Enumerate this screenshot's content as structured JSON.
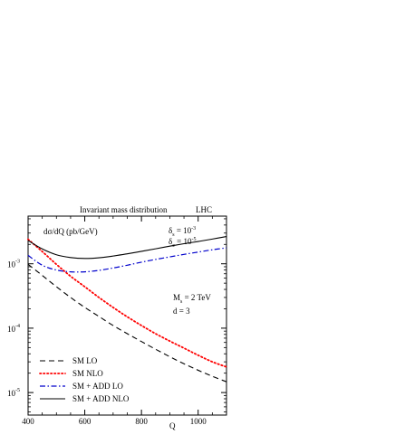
{
  "chart_data": {
    "type": "line",
    "title": "Invariant mass distribution",
    "title_right": "LHC",
    "ylabel": "dσ/dQ (pb/GeV)",
    "xlabel": "Q",
    "xlim": [
      400,
      1100
    ],
    "ylim": [
      4.47e-06,
      0.0055
    ],
    "yscale": "log",
    "x_ticks": [
      400,
      600,
      800,
      1000
    ],
    "x_tick_labels": [
      "400",
      "600",
      "800",
      "1000"
    ],
    "y_ticks": [
      0.001,
      0.0001,
      1e-05
    ],
    "y_tick_labels": [
      {
        "base": "10",
        "exp": "-3"
      },
      {
        "base": "10",
        "exp": "-4"
      },
      {
        "base": "10",
        "exp": "-5"
      }
    ],
    "annotations": {
      "delta_s": {
        "sym": "δ",
        "sub": "s",
        "text": " = 10",
        "exp": "-3"
      },
      "delta_c": {
        "sym": "δ",
        "sub": "c",
        "text": " = 10",
        "exp": "-5"
      },
      "ms": {
        "sym": "M",
        "sub": "s",
        "text": " = 2 TeV"
      },
      "d": {
        "text": "d = 3"
      }
    },
    "legend_position": "bottom-left",
    "series": [
      {
        "name": "SM LO",
        "color": "#000000",
        "dash": "dashed",
        "x": [
          400,
          450,
          500,
          550,
          600,
          650,
          700,
          750,
          800,
          850,
          900,
          950,
          1000,
          1050,
          1100
        ],
        "y": [
          0.00098,
          0.00066,
          0.00044,
          0.0003,
          0.00021,
          0.000152,
          0.00011,
          8.2e-05,
          6.2e-05,
          4.7e-05,
          3.6e-05,
          2.8e-05,
          2.22e-05,
          1.79e-05,
          1.47e-05
        ]
      },
      {
        "name": "SM NLO",
        "color": "#ff0000",
        "dash": "dotted",
        "x": [
          400,
          450,
          500,
          550,
          600,
          650,
          700,
          750,
          800,
          850,
          900,
          950,
          1000,
          1050,
          1100
        ],
        "y": [
          0.0024,
          0.00155,
          0.00098,
          0.00064,
          0.00044,
          0.0003,
          0.00021,
          0.00015,
          0.00011,
          8.2e-05,
          6.3e-05,
          4.9e-05,
          3.8e-05,
          3e-05,
          2.5e-05
        ]
      },
      {
        "name": "SM + ADD LO",
        "color": "#0000cc",
        "dash": "dashdot",
        "x": [
          400,
          450,
          500,
          550,
          600,
          650,
          700,
          750,
          800,
          850,
          900,
          950,
          1000,
          1050,
          1100
        ],
        "y": [
          0.00135,
          0.00095,
          0.0008,
          0.00075,
          0.00075,
          0.00079,
          0.00086,
          0.00095,
          0.00106,
          0.00117,
          0.00128,
          0.0014,
          0.00152,
          0.00165,
          0.00177
        ]
      },
      {
        "name": "SM + ADD NLO",
        "color": "#000000",
        "dash": "solid",
        "x": [
          400,
          450,
          500,
          550,
          600,
          650,
          700,
          750,
          800,
          850,
          900,
          950,
          1000,
          1050,
          1100
        ],
        "y": [
          0.0023,
          0.0017,
          0.00138,
          0.00125,
          0.00121,
          0.00124,
          0.00132,
          0.00143,
          0.00156,
          0.00171,
          0.00188,
          0.00205,
          0.00222,
          0.00242,
          0.00265
        ]
      }
    ]
  }
}
